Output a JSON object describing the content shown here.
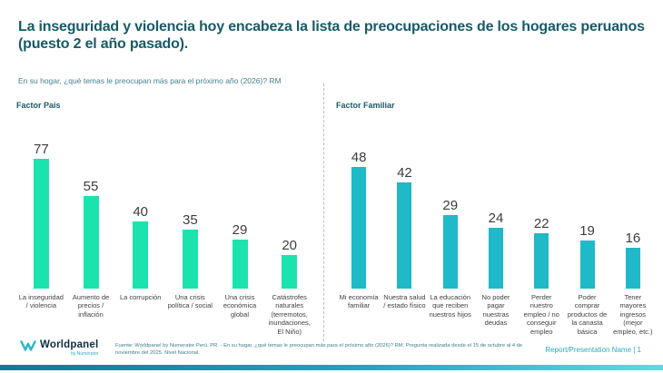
{
  "slide": {
    "title": "La inseguridad y violencia hoy encabeza la lista de preocupaciones de los hogares peruanos (puesto 2 el año pasado).",
    "subtitle": "En su hogar, ¿qué temas le preocupan más para el próximo año (2026)? RM"
  },
  "footer": {
    "logo_main": "Worldpanel",
    "logo_sub": "by Numerator",
    "source": "Fuente: Worldpanel by Numerator Perú. PR. - En su hogar, ¿qué temas le preocupan más para el próximo año (2026)? RM. Pregunta realizada desde el 15 de octubre al 4 de noviembre del 2025. Nivel Nacional.",
    "page_label": "Report/Presentation Name | 1"
  },
  "colors": {
    "title_text": "#185A68",
    "subtitle_text": "#44808F",
    "factor_pais_bar": "#1BE3AE",
    "factor_familiar_bar": "#1FB9C8",
    "value_label_text": "#3D3D3D",
    "category_label_text": "#404040",
    "footer_text": "#3E7E8C",
    "page_label_text": "#2FA9BD",
    "bottom_bar_gradient_start": "#0E7C8B",
    "bottom_bar_gradient_end": "#55E0DE"
  },
  "chart_data": [
    {
      "type": "bar",
      "title": "Factor Pais",
      "categories": [
        "La inseguridad / violencia",
        "Aumento de precios / inflación",
        "La corrupción",
        "Una crisis política / social",
        "Una crisis económica global",
        "Catástrofes naturales (terremotos, inundaciones, El Niño)"
      ],
      "values": [
        77,
        55,
        40,
        35,
        29,
        20
      ],
      "bar_color": "#1BE3AE",
      "data_labels": true,
      "value_axis_visible": false,
      "grid": false,
      "legend": "none"
    },
    {
      "type": "bar",
      "title": "Factor Familiar",
      "categories": [
        "Mi economía familiar",
        "Nuestra salud / estado físico",
        "La educación que reciben nuestros hijos",
        "No poder pagar nuestras deudas",
        "Perder nuestro empleo / no conseguir empleo",
        "Poder comprar productos de la canasta básica",
        "Tener mayores ingresos (mejor empleo, etc.)"
      ],
      "values": [
        48,
        42,
        29,
        24,
        22,
        19,
        16
      ],
      "bar_color": "#1FB9C8",
      "data_labels": true,
      "value_axis_visible": false,
      "grid": false,
      "legend": "none"
    }
  ]
}
